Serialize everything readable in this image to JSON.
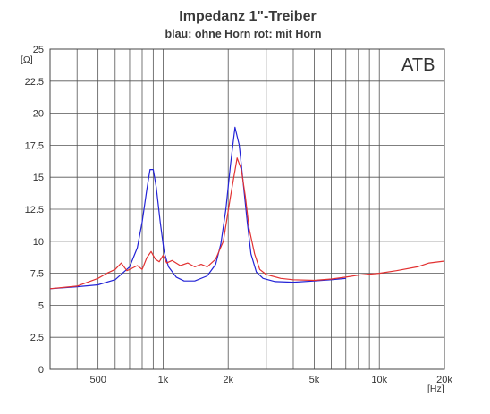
{
  "chart_data": {
    "type": "line",
    "title": "Impedanz  1\"-Treiber",
    "subtitle": "blau:  ohne Horn    rot: mit Horn",
    "brand": "ATB",
    "x_unit": "[Hz]",
    "y_unit": "[Ω]",
    "x_scale": "log",
    "xlim": [
      300,
      20000
    ],
    "ylim": [
      0,
      25
    ],
    "grid": true,
    "y_ticks": [
      {
        "value": 0,
        "label": "0"
      },
      {
        "value": 2.5,
        "label": "2.5"
      },
      {
        "value": 5,
        "label": "5"
      },
      {
        "value": 7.5,
        "label": "7.5"
      },
      {
        "value": 10,
        "label": "10"
      },
      {
        "value": 12.5,
        "label": "12.5"
      },
      {
        "value": 15,
        "label": "15"
      },
      {
        "value": 17.5,
        "label": "17.5"
      },
      {
        "value": 20,
        "label": "20"
      },
      {
        "value": 22.5,
        "label": "22.5"
      },
      {
        "value": 25,
        "label": "25"
      }
    ],
    "x_ticks": [
      {
        "value": 500,
        "label": "500"
      },
      {
        "value": 1000,
        "label": "1k"
      },
      {
        "value": 2000,
        "label": "2k"
      },
      {
        "value": 5000,
        "label": "5k"
      },
      {
        "value": 10000,
        "label": "10k"
      },
      {
        "value": 20000,
        "label": "20k"
      }
    ],
    "x_gridlines": [
      300,
      400,
      500,
      600,
      700,
      800,
      900,
      1000,
      2000,
      3000,
      4000,
      5000,
      6000,
      7000,
      8000,
      9000,
      10000,
      20000
    ],
    "series": [
      {
        "color": "#2323d6",
        "points": [
          [
            300,
            6.3
          ],
          [
            400,
            6.45
          ],
          [
            500,
            6.6
          ],
          [
            600,
            7.0
          ],
          [
            700,
            8.0
          ],
          [
            760,
            9.5
          ],
          [
            800,
            11.5
          ],
          [
            840,
            14.0
          ],
          [
            870,
            15.6
          ],
          [
            900,
            15.6
          ],
          [
            930,
            14.2
          ],
          [
            970,
            11.5
          ],
          [
            1010,
            9.2
          ],
          [
            1060,
            8.0
          ],
          [
            1150,
            7.2
          ],
          [
            1250,
            6.9
          ],
          [
            1400,
            6.9
          ],
          [
            1600,
            7.3
          ],
          [
            1750,
            8.2
          ],
          [
            1850,
            9.8
          ],
          [
            1950,
            12.5
          ],
          [
            2050,
            16.0
          ],
          [
            2150,
            18.9
          ],
          [
            2250,
            17.5
          ],
          [
            2350,
            14.5
          ],
          [
            2450,
            11.5
          ],
          [
            2550,
            9.0
          ],
          [
            2700,
            7.6
          ],
          [
            2900,
            7.1
          ],
          [
            3300,
            6.85
          ],
          [
            4000,
            6.8
          ],
          [
            5000,
            6.9
          ],
          [
            6000,
            7.0
          ],
          [
            7000,
            7.1
          ]
        ]
      },
      {
        "color": "#e23131",
        "points": [
          [
            300,
            6.3
          ],
          [
            400,
            6.5
          ],
          [
            500,
            7.1
          ],
          [
            550,
            7.5
          ],
          [
            600,
            7.8
          ],
          [
            640,
            8.3
          ],
          [
            680,
            7.7
          ],
          [
            720,
            7.9
          ],
          [
            760,
            8.1
          ],
          [
            800,
            7.8
          ],
          [
            840,
            8.7
          ],
          [
            880,
            9.2
          ],
          [
            920,
            8.6
          ],
          [
            960,
            8.4
          ],
          [
            1000,
            8.9
          ],
          [
            1040,
            8.3
          ],
          [
            1100,
            8.5
          ],
          [
            1200,
            8.1
          ],
          [
            1300,
            8.3
          ],
          [
            1400,
            8.0
          ],
          [
            1500,
            8.2
          ],
          [
            1600,
            8.0
          ],
          [
            1750,
            8.6
          ],
          [
            1900,
            10.0
          ],
          [
            2050,
            13.5
          ],
          [
            2200,
            16.5
          ],
          [
            2300,
            15.6
          ],
          [
            2400,
            13.5
          ],
          [
            2500,
            11.0
          ],
          [
            2650,
            9.0
          ],
          [
            2800,
            7.8
          ],
          [
            3000,
            7.4
          ],
          [
            3500,
            7.1
          ],
          [
            4000,
            7.0
          ],
          [
            5000,
            6.95
          ],
          [
            6000,
            7.05
          ],
          [
            7000,
            7.2
          ],
          [
            8000,
            7.35
          ],
          [
            10000,
            7.5
          ],
          [
            12000,
            7.7
          ],
          [
            15000,
            8.0
          ],
          [
            17000,
            8.3
          ],
          [
            20000,
            8.45
          ]
        ]
      }
    ]
  }
}
